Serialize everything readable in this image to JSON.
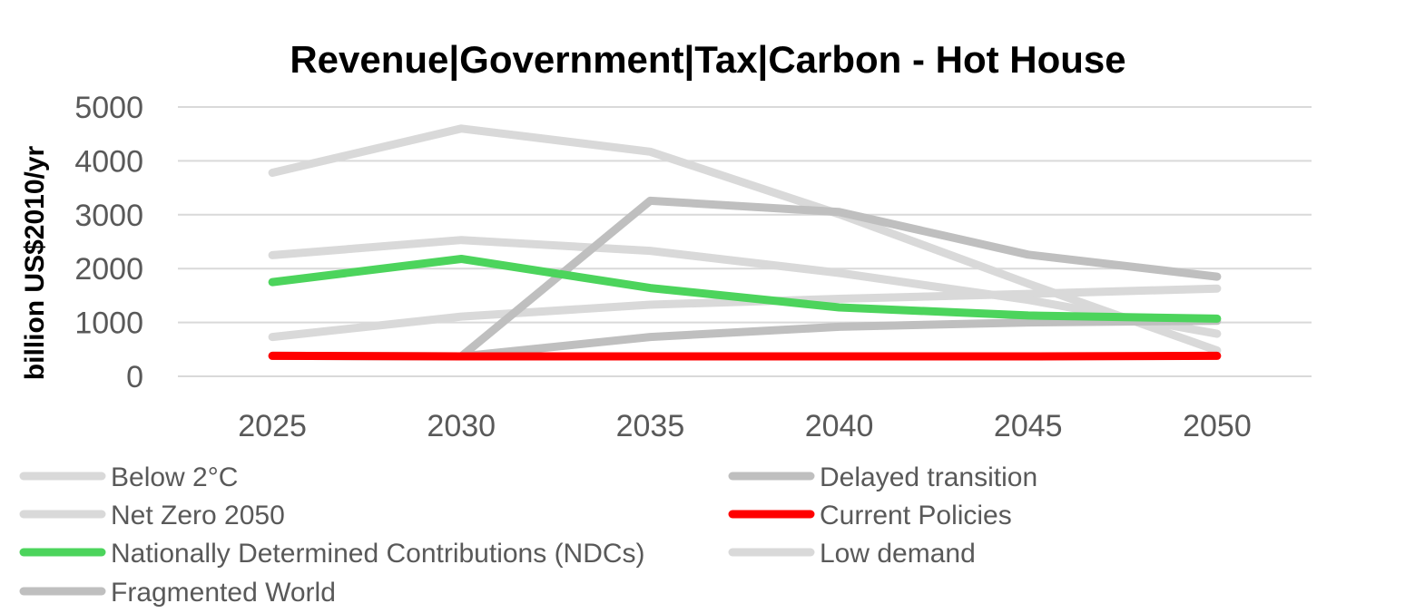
{
  "chart_data": {
    "type": "line",
    "title": "Revenue|Government|Tax|Carbon - Hot House",
    "xlabel": "",
    "ylabel": "billion US$2010/yr",
    "categories": [
      "2025",
      "2030",
      "2035",
      "2040",
      "2045",
      "2050"
    ],
    "ylim": [
      0,
      5000
    ],
    "yticks": [
      "0",
      "1000",
      "2000",
      "3000",
      "4000",
      "5000"
    ],
    "ytick_values": [
      0,
      1000,
      2000,
      3000,
      4000,
      5000
    ],
    "grid": true,
    "legend_position": "bottom",
    "series": [
      {
        "name": "Below 2°C",
        "color": "#d9d9d9",
        "values": [
          2250,
          2530,
          2330,
          1920,
          1420,
          790
        ]
      },
      {
        "name": "Delayed transition",
        "color": "#bfbfbf",
        "values": [
          380,
          370,
          3260,
          3050,
          2260,
          1850
        ]
      },
      {
        "name": "Net Zero 2050",
        "color": "#d9d9d9",
        "values": [
          3780,
          4600,
          4170,
          3010,
          1720,
          480
        ]
      },
      {
        "name": "Current Policies",
        "color": "#ff0000",
        "values": [
          380,
          370,
          370,
          370,
          370,
          380
        ]
      },
      {
        "name": "Nationally Determined Contributions (NDCs)",
        "color": "#4cd45c",
        "values": [
          1750,
          2180,
          1640,
          1280,
          1130,
          1070
        ]
      },
      {
        "name": "Low demand",
        "color": "#d9d9d9",
        "values": [
          730,
          1110,
          1330,
          1440,
          1530,
          1630
        ]
      },
      {
        "name": "Fragmented World",
        "color": "#bfbfbf",
        "values": [
          380,
          370,
          730,
          920,
          1000,
          1030
        ]
      }
    ],
    "draw_order": [
      5,
      0,
      2,
      6,
      1,
      4,
      3
    ]
  }
}
